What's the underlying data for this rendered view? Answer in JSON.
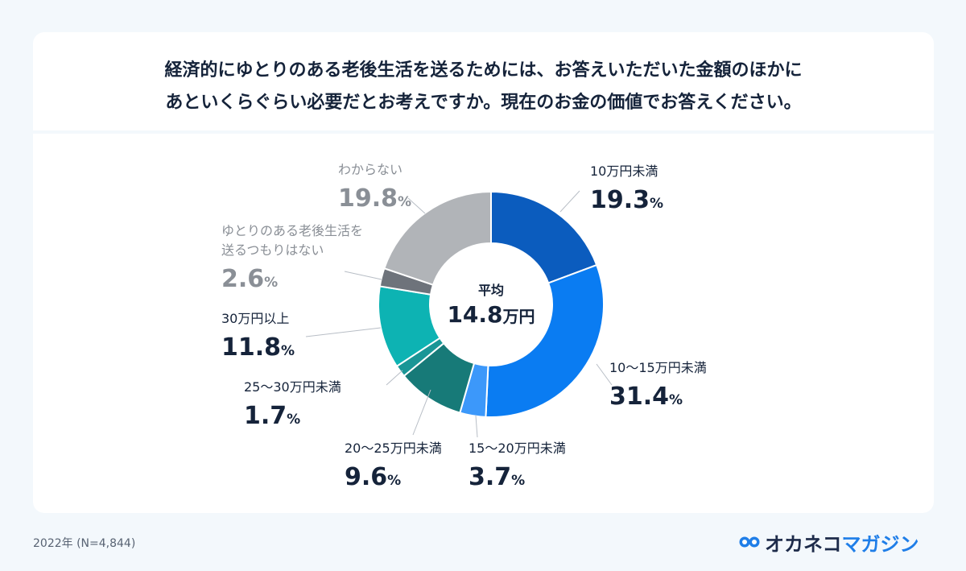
{
  "title_lines": [
    "経済的にゆとりのある老後生活を送るためには、お答えいただいた金額のほかに",
    "あといくらぐらい必要だとお考えですか。現在のお金の価値でお答えください。"
  ],
  "center": {
    "label": "平均",
    "value": "14.8",
    "unit": "万円"
  },
  "footnote": "2022年 (N=4,844)",
  "logo": {
    "part1": "オカネコ",
    "part2": "マガジン"
  },
  "chart_data": {
    "type": "pie",
    "donut": true,
    "start_angle_deg": 0,
    "direction": "clockwise",
    "unit": "%",
    "slices": [
      {
        "label": "10万円未満",
        "value": 19.3,
        "color": "#0b5cbe",
        "text_color": "#15233a"
      },
      {
        "label": "10〜15万円未満",
        "value": 31.4,
        "color": "#0a7cf2",
        "text_color": "#15233a"
      },
      {
        "label": "15〜20万円未満",
        "value": 3.7,
        "color": "#3c98fa",
        "text_color": "#15233a"
      },
      {
        "label": "20〜25万円未満",
        "value": 9.6,
        "color": "#177a78",
        "text_color": "#15233a"
      },
      {
        "label": "25〜30万円未満",
        "value": 1.7,
        "color": "#1a9696",
        "text_color": "#15233a"
      },
      {
        "label": "30万円以上",
        "value": 11.8,
        "color": "#0db3b3",
        "text_color": "#15233a"
      },
      {
        "label": "ゆとりのある老後生活を|送るつもりはない",
        "value": 2.6,
        "color": "#6e737b",
        "text_color": "#8a8f96"
      },
      {
        "label": "わからない",
        "value": 19.8,
        "color": "#b1b4b8",
        "text_color": "#8a8f96"
      }
    ]
  }
}
